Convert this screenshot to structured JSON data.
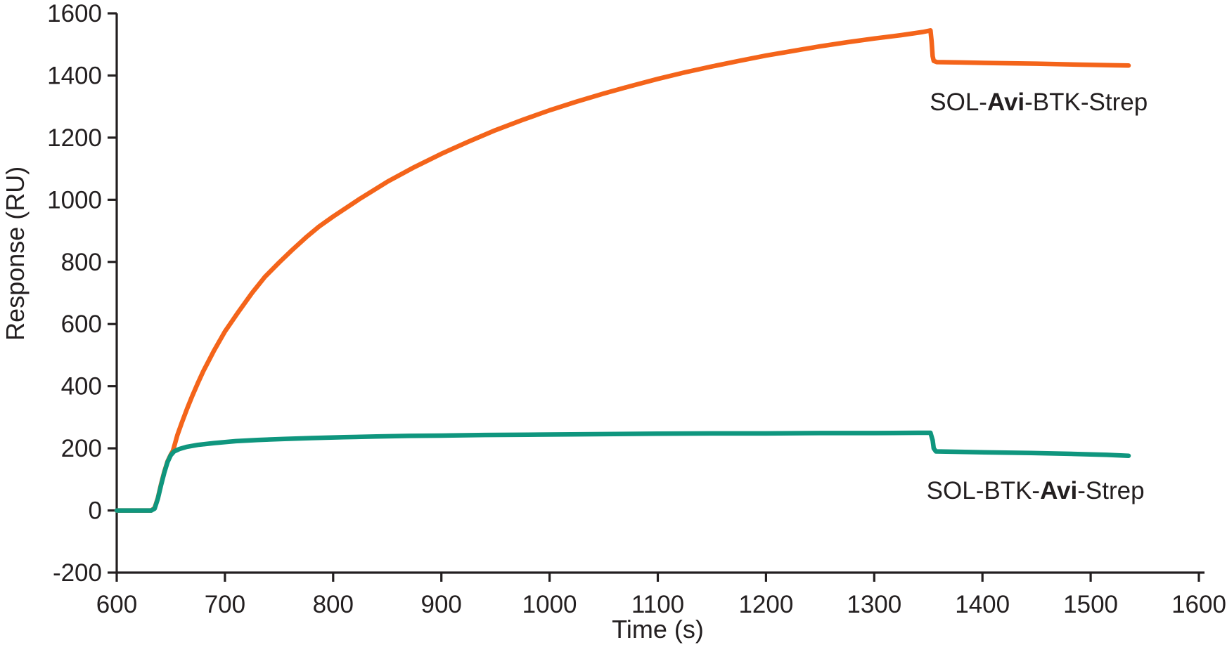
{
  "figure": {
    "background": "#FFFFFF",
    "text_color": "#231F20"
  },
  "chart_data": {
    "type": "line",
    "title": "",
    "xlabel": "Time (s)",
    "ylabel": "Response (RU)",
    "xlim": [
      600,
      1600
    ],
    "ylim": [
      -200,
      1600
    ],
    "x_ticks": [
      600,
      700,
      800,
      900,
      1000,
      1100,
      1200,
      1300,
      1400,
      1500,
      1600
    ],
    "y_ticks": [
      -200,
      0,
      200,
      400,
      600,
      800,
      1000,
      1200,
      1400,
      1600
    ],
    "grid": false,
    "legend_position": "inline-annotations",
    "axis_color": "#231F20",
    "series": [
      {
        "name": "SOL-Avi-BTK-Strep",
        "color": "#F4641A",
        "peak_ru": 1545,
        "post_dissociation_ru": 1432,
        "points": [
          [
            600,
            0
          ],
          [
            632,
            0
          ],
          [
            635,
            8
          ],
          [
            638,
            40
          ],
          [
            641,
            85
          ],
          [
            644,
            125
          ],
          [
            647,
            158
          ],
          [
            650,
            180
          ],
          [
            652,
            192
          ],
          [
            656,
            242
          ],
          [
            660,
            281
          ],
          [
            665,
            327
          ],
          [
            670,
            370
          ],
          [
            675,
            410
          ],
          [
            680,
            448
          ],
          [
            690,
            515
          ],
          [
            700,
            576
          ],
          [
            712,
            637
          ],
          [
            725,
            700
          ],
          [
            737,
            752
          ],
          [
            750,
            798
          ],
          [
            762,
            838
          ],
          [
            775,
            879
          ],
          [
            787,
            914
          ],
          [
            800,
            946
          ],
          [
            825,
            1004
          ],
          [
            850,
            1058
          ],
          [
            875,
            1105
          ],
          [
            900,
            1148
          ],
          [
            925,
            1187
          ],
          [
            950,
            1224
          ],
          [
            975,
            1257
          ],
          [
            1000,
            1288
          ],
          [
            1025,
            1316
          ],
          [
            1050,
            1342
          ],
          [
            1075,
            1366
          ],
          [
            1100,
            1389
          ],
          [
            1125,
            1410
          ],
          [
            1150,
            1429
          ],
          [
            1175,
            1447
          ],
          [
            1200,
            1464
          ],
          [
            1225,
            1479
          ],
          [
            1250,
            1494
          ],
          [
            1275,
            1507
          ],
          [
            1300,
            1519
          ],
          [
            1325,
            1530
          ],
          [
            1345,
            1540
          ],
          [
            1352,
            1545
          ],
          [
            1353,
            1510
          ],
          [
            1354,
            1462
          ],
          [
            1355,
            1447
          ],
          [
            1358,
            1443
          ],
          [
            1380,
            1442
          ],
          [
            1410,
            1440
          ],
          [
            1450,
            1438
          ],
          [
            1490,
            1435
          ],
          [
            1520,
            1433
          ],
          [
            1535,
            1432
          ]
        ]
      },
      {
        "name": "SOL-BTK-Avi-Strep",
        "color": "#0F967E",
        "peak_ru": 250,
        "post_dissociation_ru": 176,
        "points": [
          [
            600,
            0
          ],
          [
            632,
            0
          ],
          [
            635,
            6
          ],
          [
            638,
            38
          ],
          [
            641,
            82
          ],
          [
            644,
            122
          ],
          [
            647,
            156
          ],
          [
            650,
            178
          ],
          [
            653,
            190
          ],
          [
            658,
            198
          ],
          [
            665,
            205
          ],
          [
            675,
            211
          ],
          [
            690,
            217
          ],
          [
            710,
            223
          ],
          [
            730,
            227
          ],
          [
            755,
            230
          ],
          [
            780,
            233
          ],
          [
            810,
            236
          ],
          [
            840,
            238
          ],
          [
            870,
            240
          ],
          [
            900,
            241
          ],
          [
            940,
            243
          ],
          [
            980,
            244
          ],
          [
            1020,
            245
          ],
          [
            1060,
            246
          ],
          [
            1100,
            247
          ],
          [
            1150,
            248
          ],
          [
            1200,
            248
          ],
          [
            1250,
            249
          ],
          [
            1300,
            249
          ],
          [
            1340,
            250
          ],
          [
            1352,
            250
          ],
          [
            1354,
            226
          ],
          [
            1355,
            200
          ],
          [
            1357,
            190
          ],
          [
            1375,
            189
          ],
          [
            1405,
            187
          ],
          [
            1445,
            185
          ],
          [
            1485,
            182
          ],
          [
            1515,
            179
          ],
          [
            1535,
            176
          ]
        ]
      }
    ],
    "annotations": [
      {
        "series": "SOL-Avi-BTK-Strep",
        "x": 1452,
        "y": 1315,
        "parts": [
          {
            "text": "SOL-",
            "bold": false
          },
          {
            "text": "Avi",
            "bold": true
          },
          {
            "text": "-BTK-Strep",
            "bold": false
          }
        ]
      },
      {
        "series": "SOL-BTK-Avi-Strep",
        "x": 1449,
        "y": 65,
        "parts": [
          {
            "text": "SOL-BTK-",
            "bold": false
          },
          {
            "text": "Avi",
            "bold": true
          },
          {
            "text": "-Strep",
            "bold": false
          }
        ]
      }
    ]
  }
}
